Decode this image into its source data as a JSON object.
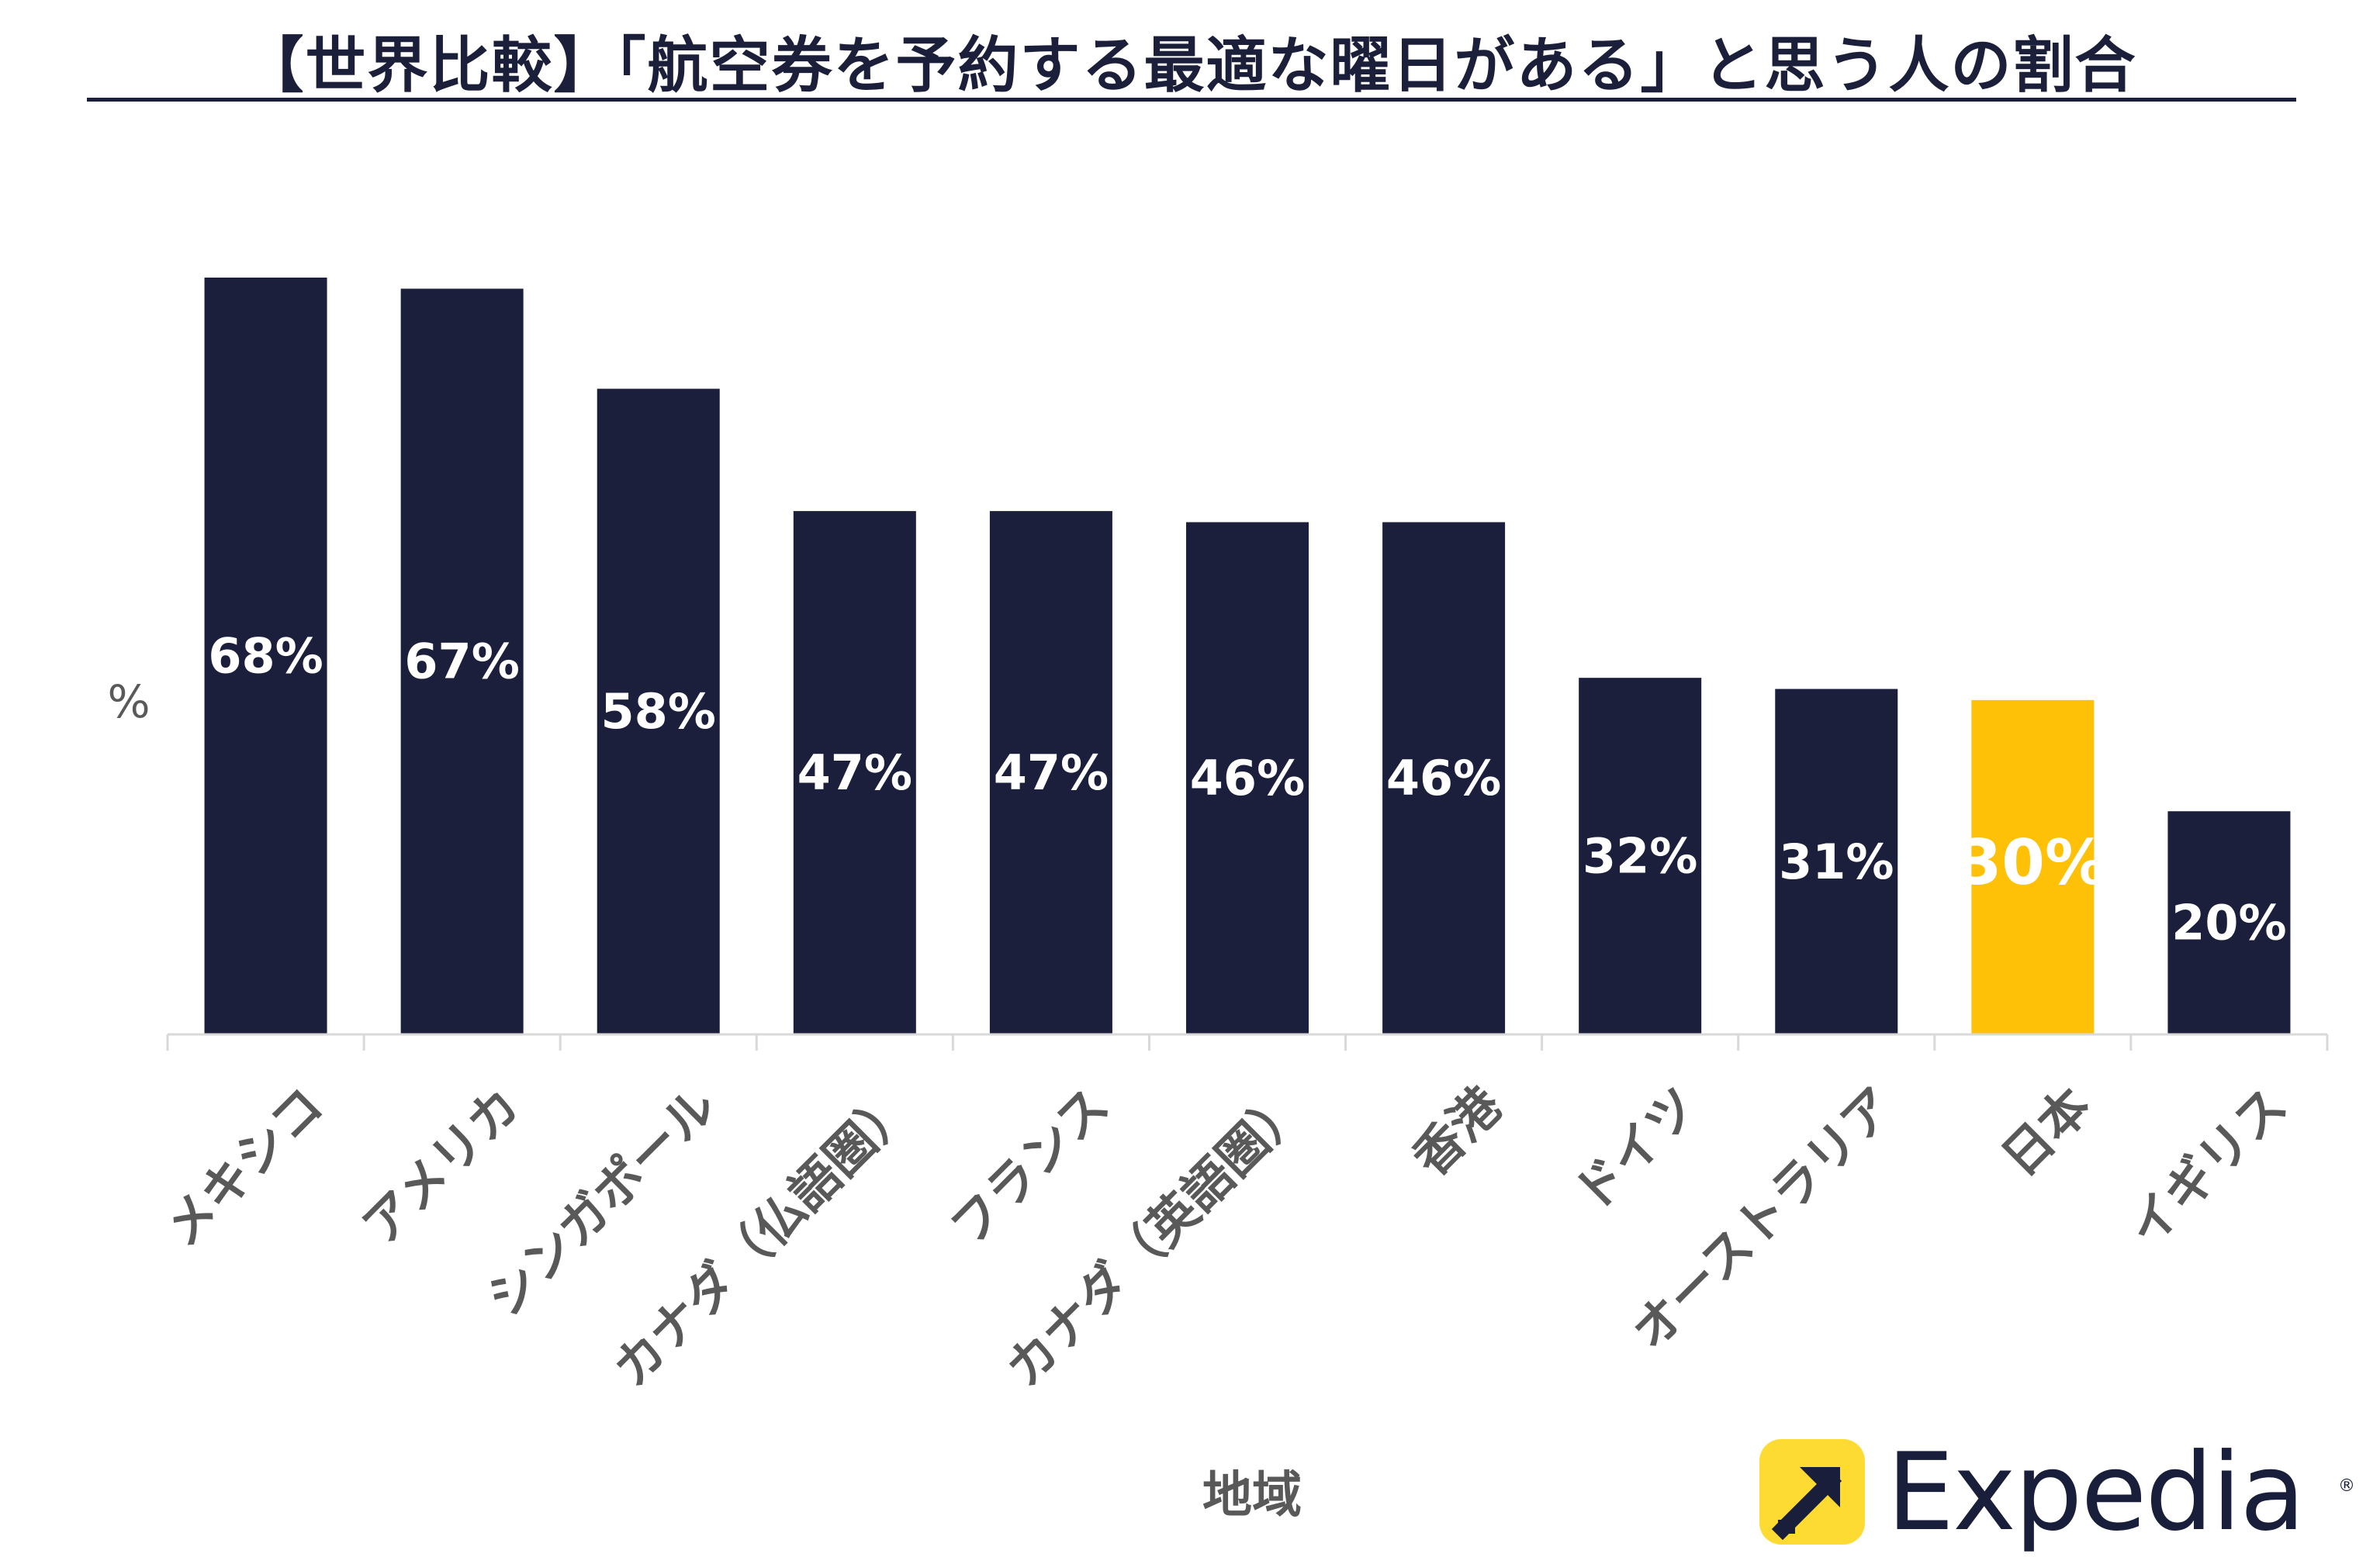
{
  "chart_data": {
    "type": "bar",
    "title": "【世界比較】「航空券を予約する最適な曜日がある」と思う人の割合",
    "xlabel": "地域",
    "ylabel": "%",
    "ylim": [
      0,
      75
    ],
    "grid": false,
    "legend": "none",
    "categories": [
      "メキシコ",
      "アメリカ",
      "シンガポール",
      "カナダ（仏語圏）",
      "フランス",
      "カナダ（英語圏）",
      "香港",
      "ドイツ",
      "オーストラリア",
      "日本",
      "イギリス"
    ],
    "values": [
      68,
      67,
      58,
      47,
      47,
      46,
      46,
      32,
      31,
      30,
      20
    ],
    "data_labels": [
      "68%",
      "67%",
      "58%",
      "47%",
      "47%",
      "46%",
      "46%",
      "32%",
      "31%",
      "30%",
      "20%"
    ],
    "bar_color": "#1b1f3b",
    "highlight_color": "#fec107",
    "highlight_index": 9
  },
  "logo": {
    "text": "Expedia",
    "registered": "®",
    "mark_color": "#fddb32",
    "text_color": "#191e3b"
  }
}
